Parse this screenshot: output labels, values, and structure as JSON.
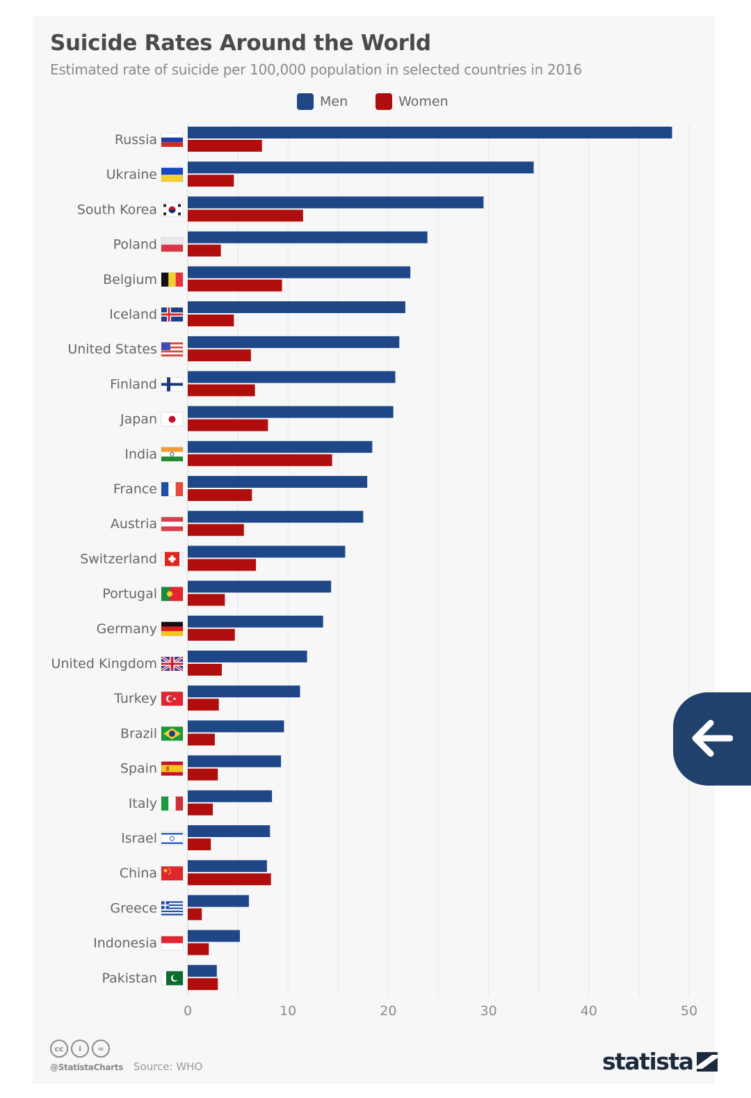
{
  "page": {
    "title": "Suicide Rates Around the World",
    "subtitle": "Estimated rate of suicide per 100,000 population in selected countries in 2016",
    "footer": {
      "handle": "@StatistaCharts",
      "source": "Source: WHO",
      "brand": "statista",
      "license_icons": [
        "cc-icon",
        "attribution-icon",
        "no-derivatives-icon"
      ],
      "license_labels": [
        "cc",
        "i",
        "="
      ]
    },
    "back_button": {
      "icon": "arrow-left-icon"
    }
  },
  "colors": {
    "men": "#1f4788",
    "women": "#b00d0d",
    "grid": "#e6e6e6",
    "tick_text": "#8a8a8a",
    "label_text": "#666666"
  },
  "chart_data": {
    "type": "bar",
    "orientation": "horizontal",
    "title": "Suicide Rates Around the World",
    "subtitle": "Estimated rate of suicide per 100,000 population in selected countries in 2016",
    "xlabel": "",
    "ylabel": "",
    "xlim": [
      0,
      50
    ],
    "xticks": [
      0,
      10,
      20,
      30,
      40,
      50
    ],
    "grid": true,
    "legend": {
      "position": "top-center",
      "entries": [
        "Men",
        "Women"
      ]
    },
    "categories": [
      "Russia",
      "Ukraine",
      "South Korea",
      "Poland",
      "Belgium",
      "Iceland",
      "United States",
      "Finland",
      "Japan",
      "India",
      "France",
      "Austria",
      "Switzerland",
      "Portugal",
      "Germany",
      "United Kingdom",
      "Turkey",
      "Brazil",
      "Spain",
      "Italy",
      "Israel",
      "China",
      "Greece",
      "Indonesia",
      "Pakistan"
    ],
    "series": [
      {
        "name": "Men",
        "values": [
          48.3,
          34.5,
          29.5,
          23.9,
          22.2,
          21.7,
          21.1,
          20.7,
          20.5,
          18.4,
          17.9,
          17.5,
          15.7,
          14.3,
          13.5,
          11.9,
          11.2,
          9.6,
          9.3,
          8.4,
          8.2,
          7.9,
          6.1,
          5.2,
          2.9
        ]
      },
      {
        "name": "Women",
        "values": [
          7.4,
          4.6,
          11.5,
          3.3,
          9.4,
          4.6,
          6.3,
          6.7,
          8.0,
          14.4,
          6.4,
          5.6,
          6.8,
          3.7,
          4.7,
          3.4,
          3.1,
          2.7,
          3.0,
          2.5,
          2.3,
          8.3,
          1.4,
          2.1,
          3.0
        ]
      }
    ],
    "flags": [
      "flag-russia-icon",
      "flag-ukraine-icon",
      "flag-south-korea-icon",
      "flag-poland-icon",
      "flag-belgium-icon",
      "flag-iceland-icon",
      "flag-united-states-icon",
      "flag-finland-icon",
      "flag-japan-icon",
      "flag-india-icon",
      "flag-france-icon",
      "flag-austria-icon",
      "flag-switzerland-icon",
      "flag-portugal-icon",
      "flag-germany-icon",
      "flag-united-kingdom-icon",
      "flag-turkey-icon",
      "flag-brazil-icon",
      "flag-spain-icon",
      "flag-italy-icon",
      "flag-israel-icon",
      "flag-china-icon",
      "flag-greece-icon",
      "flag-indonesia-icon",
      "flag-pakistan-icon"
    ]
  }
}
